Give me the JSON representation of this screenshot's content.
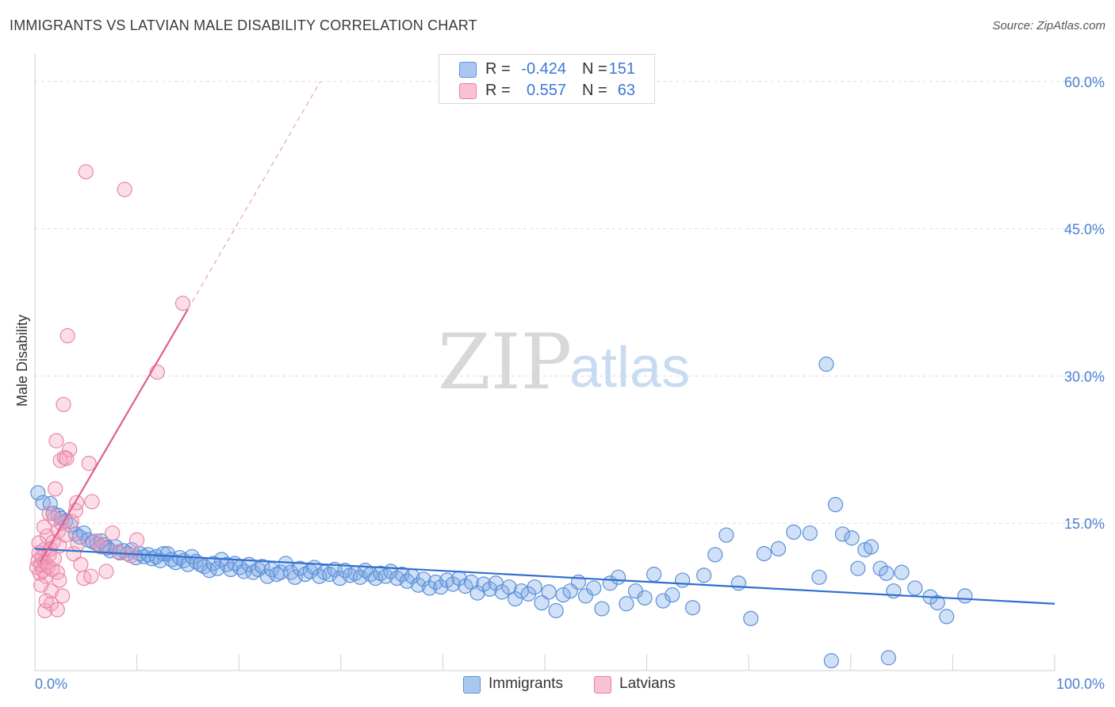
{
  "header": {
    "title": "IMMIGRANTS VS LATVIAN MALE DISABILITY CORRELATION CHART",
    "source": "Source: ZipAtlas.com"
  },
  "legend": {
    "rows": [
      {
        "r_label": "R =",
        "r_value": "-0.424",
        "n_label": "N =",
        "n_value": "151",
        "color": "#a9c8f0",
        "border": "#5b8fd8"
      },
      {
        "r_label": "R =",
        "r_value": "0.557",
        "n_label": "N =",
        "n_value": "63",
        "color": "#f8c2d2",
        "border": "#e87fa3"
      }
    ],
    "bottom": [
      "Immigrants",
      "Latvians"
    ]
  },
  "watermark": {
    "zip": "ZIP",
    "atlas": "atlas"
  },
  "colors": {
    "immigrants_fill": "rgba(120,165,230,0.35)",
    "immigrants_stroke": "#5b8fd8",
    "immigrants_line": "#2f6fd0",
    "latvians_fill": "rgba(245,160,190,0.35)",
    "latvians_stroke": "#e887a8",
    "latvians_line": "#e0608c",
    "axis_text": "#4a7fd1",
    "grid": "#dddddd"
  },
  "chart_data": {
    "type": "scatter",
    "title": "IMMIGRANTS VS LATVIAN MALE DISABILITY CORRELATION CHART",
    "xlabel": "",
    "ylabel": "Male Disability",
    "xlim": [
      0,
      100
    ],
    "ylim": [
      0,
      62
    ],
    "x_tick_labels": [
      "0.0%",
      "100.0%"
    ],
    "y_ticks": [
      15,
      30,
      45,
      60
    ],
    "y_tick_labels": [
      "15.0%",
      "30.0%",
      "45.0%",
      "60.0%"
    ],
    "series": [
      {
        "name": "Immigrants",
        "r": -0.424,
        "n": 151,
        "trend": {
          "x0": 0,
          "y0": 12.4,
          "x1": 100,
          "y1": 6.8,
          "dashed_to": null
        },
        "points": [
          [
            0.3,
            18.1
          ],
          [
            0.8,
            17.1
          ],
          [
            1.5,
            17.0
          ],
          [
            1.8,
            16.0
          ],
          [
            2.3,
            15.8
          ],
          [
            2.6,
            15.5
          ],
          [
            3.0,
            15.2
          ],
          [
            3.5,
            14.8
          ],
          [
            4.0,
            13.9
          ],
          [
            4.4,
            13.6
          ],
          [
            4.8,
            14.0
          ],
          [
            5.2,
            13.3
          ],
          [
            5.7,
            13.1
          ],
          [
            6.1,
            12.9
          ],
          [
            6.5,
            13.2
          ],
          [
            6.8,
            12.8
          ],
          [
            7.1,
            12.5
          ],
          [
            7.4,
            12.2
          ],
          [
            7.9,
            12.6
          ],
          [
            8.3,
            12.0
          ],
          [
            8.7,
            12.2
          ],
          [
            9.1,
            11.9
          ],
          [
            9.5,
            12.3
          ],
          [
            9.9,
            11.5
          ],
          [
            10.3,
            11.9
          ],
          [
            10.7,
            11.6
          ],
          [
            11.1,
            11.8
          ],
          [
            11.5,
            11.4
          ],
          [
            11.9,
            11.6
          ],
          [
            12.3,
            11.2
          ],
          [
            12.6,
            11.9
          ],
          [
            13.0,
            11.9
          ],
          [
            13.4,
            11.3
          ],
          [
            13.8,
            11.0
          ],
          [
            14.2,
            11.5
          ],
          [
            14.6,
            11.2
          ],
          [
            15.0,
            10.8
          ],
          [
            15.4,
            11.6
          ],
          [
            15.8,
            11.1
          ],
          [
            16.2,
            10.8
          ],
          [
            16.6,
            10.6
          ],
          [
            17.1,
            10.2
          ],
          [
            17.5,
            10.9
          ],
          [
            17.9,
            10.4
          ],
          [
            18.3,
            11.3
          ],
          [
            18.8,
            10.8
          ],
          [
            19.2,
            10.3
          ],
          [
            19.6,
            10.9
          ],
          [
            20.1,
            10.5
          ],
          [
            20.5,
            10.1
          ],
          [
            21.0,
            10.8
          ],
          [
            21.4,
            10.0
          ],
          [
            21.9,
            10.3
          ],
          [
            22.3,
            10.6
          ],
          [
            22.8,
            9.6
          ],
          [
            23.2,
            10.3
          ],
          [
            23.7,
            9.8
          ],
          [
            24.1,
            10.0
          ],
          [
            24.6,
            10.9
          ],
          [
            25.1,
            10.0
          ],
          [
            25.5,
            9.5
          ],
          [
            26.0,
            10.4
          ],
          [
            26.5,
            9.8
          ],
          [
            27.0,
            10.1
          ],
          [
            27.4,
            10.5
          ],
          [
            27.9,
            9.6
          ],
          [
            28.4,
            10.0
          ],
          [
            28.9,
            9.8
          ],
          [
            29.4,
            10.3
          ],
          [
            29.9,
            9.4
          ],
          [
            30.4,
            10.2
          ],
          [
            30.9,
            9.7
          ],
          [
            31.4,
            9.9
          ],
          [
            31.9,
            9.5
          ],
          [
            32.4,
            10.2
          ],
          [
            32.9,
            9.8
          ],
          [
            33.4,
            9.4
          ],
          [
            33.9,
            9.9
          ],
          [
            34.4,
            9.6
          ],
          [
            34.9,
            10.1
          ],
          [
            35.5,
            9.4
          ],
          [
            36.0,
            9.8
          ],
          [
            36.5,
            9.1
          ],
          [
            37.0,
            9.6
          ],
          [
            37.6,
            8.7
          ],
          [
            38.1,
            9.3
          ],
          [
            38.7,
            8.4
          ],
          [
            39.3,
            9.0
          ],
          [
            39.8,
            8.5
          ],
          [
            40.4,
            9.2
          ],
          [
            41.0,
            8.8
          ],
          [
            41.6,
            9.4
          ],
          [
            42.2,
            8.6
          ],
          [
            42.8,
            9.0
          ],
          [
            43.4,
            7.9
          ],
          [
            44.0,
            8.8
          ],
          [
            44.6,
            8.3
          ],
          [
            45.2,
            8.9
          ],
          [
            45.8,
            8.0
          ],
          [
            46.5,
            8.5
          ],
          [
            47.1,
            7.3
          ],
          [
            47.7,
            8.1
          ],
          [
            48.4,
            7.8
          ],
          [
            49.0,
            8.5
          ],
          [
            49.7,
            6.9
          ],
          [
            50.4,
            8.0
          ],
          [
            51.1,
            6.1
          ],
          [
            51.8,
            7.7
          ],
          [
            52.5,
            8.1
          ],
          [
            53.3,
            9.0
          ],
          [
            54.0,
            7.6
          ],
          [
            54.8,
            8.4
          ],
          [
            55.6,
            6.3
          ],
          [
            56.4,
            8.9
          ],
          [
            57.2,
            9.5
          ],
          [
            58.0,
            6.8
          ],
          [
            58.9,
            8.1
          ],
          [
            59.8,
            7.4
          ],
          [
            60.7,
            9.8
          ],
          [
            61.6,
            7.1
          ],
          [
            62.5,
            7.7
          ],
          [
            63.5,
            9.2
          ],
          [
            64.5,
            6.4
          ],
          [
            65.6,
            9.7
          ],
          [
            66.7,
            11.8
          ],
          [
            67.8,
            13.8
          ],
          [
            69.0,
            8.9
          ],
          [
            70.2,
            5.3
          ],
          [
            71.5,
            11.9
          ],
          [
            72.9,
            12.4
          ],
          [
            74.4,
            14.1
          ],
          [
            76.0,
            14.0
          ],
          [
            77.6,
            31.2
          ],
          [
            78.5,
            16.9
          ],
          [
            79.2,
            13.9
          ],
          [
            80.1,
            13.5
          ],
          [
            80.7,
            10.4
          ],
          [
            81.4,
            12.3
          ],
          [
            82.0,
            12.6
          ],
          [
            82.9,
            10.4
          ],
          [
            83.5,
            9.9
          ],
          [
            84.2,
            8.1
          ],
          [
            85.0,
            10.0
          ],
          [
            86.3,
            8.4
          ],
          [
            87.8,
            7.5
          ],
          [
            89.4,
            5.5
          ],
          [
            91.2,
            7.6
          ],
          [
            76.9,
            9.5
          ],
          [
            83.7,
            1.3
          ],
          [
            78.1,
            1.0
          ],
          [
            88.5,
            6.9
          ]
        ]
      },
      {
        "name": "Latvians",
        "r": 0.557,
        "n": 63,
        "trend": {
          "x0": 0.5,
          "y0": 11.0,
          "x1": 15.0,
          "y1": 36.8,
          "dashed_to": [
            28.0,
            60.0
          ]
        },
        "points": [
          [
            0.2,
            10.5
          ],
          [
            0.3,
            11.2
          ],
          [
            0.4,
            12.0
          ],
          [
            0.5,
            9.9
          ],
          [
            0.6,
            10.8
          ],
          [
            0.7,
            11.5
          ],
          [
            0.8,
            10.2
          ],
          [
            0.9,
            12.3
          ],
          [
            1.0,
            11.0
          ],
          [
            1.1,
            9.6
          ],
          [
            1.2,
            13.7
          ],
          [
            1.3,
            10.6
          ],
          [
            1.4,
            11.8
          ],
          [
            1.5,
            12.4
          ],
          [
            1.6,
            8.1
          ],
          [
            1.7,
            10.3
          ],
          [
            1.8,
            13.1
          ],
          [
            1.9,
            11.4
          ],
          [
            2.0,
            18.5
          ],
          [
            2.1,
            23.4
          ],
          [
            2.2,
            10.0
          ],
          [
            2.3,
            14.2
          ],
          [
            2.4,
            12.7
          ],
          [
            2.5,
            21.4
          ],
          [
            2.6,
            15.0
          ],
          [
            2.7,
            7.6
          ],
          [
            2.8,
            27.1
          ],
          [
            2.9,
            21.7
          ],
          [
            3.0,
            13.8
          ],
          [
            3.2,
            34.1
          ],
          [
            3.4,
            22.5
          ],
          [
            3.6,
            15.2
          ],
          [
            3.8,
            11.9
          ],
          [
            4.0,
            16.3
          ],
          [
            4.2,
            12.9
          ],
          [
            4.5,
            10.8
          ],
          [
            4.8,
            9.4
          ],
          [
            5.0,
            50.8
          ],
          [
            5.3,
            21.1
          ],
          [
            5.6,
            17.2
          ],
          [
            6.0,
            13.2
          ],
          [
            6.5,
            12.6
          ],
          [
            7.0,
            10.1
          ],
          [
            7.6,
            14.0
          ],
          [
            8.2,
            12.1
          ],
          [
            8.8,
            49.0
          ],
          [
            9.4,
            11.7
          ],
          [
            10.0,
            13.3
          ],
          [
            12.0,
            30.4
          ],
          [
            14.5,
            37.4
          ],
          [
            1.0,
            6.1
          ],
          [
            1.6,
            6.8
          ],
          [
            2.2,
            6.2
          ],
          [
            0.4,
            13.0
          ],
          [
            0.9,
            14.6
          ],
          [
            1.4,
            16.0
          ],
          [
            1.9,
            15.5
          ],
          [
            3.1,
            21.6
          ],
          [
            4.1,
            17.1
          ],
          [
            5.5,
            9.6
          ],
          [
            2.4,
            9.2
          ],
          [
            1.1,
            7.1
          ],
          [
            0.6,
            8.7
          ]
        ]
      }
    ]
  }
}
